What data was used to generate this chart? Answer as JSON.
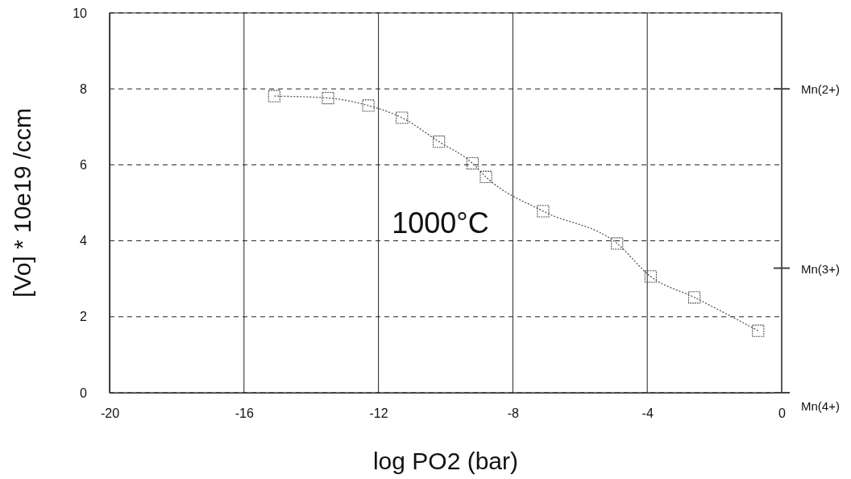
{
  "chart_data": {
    "type": "line",
    "xlabel": "log PO2 (bar)",
    "ylabel": "[Vo] * 10e19 /ccm",
    "xlim": [
      -20,
      0
    ],
    "xticks": [
      -20,
      -16,
      -12,
      -8,
      -4,
      0
    ],
    "ylim": [
      0,
      10
    ],
    "yticks": [
      0,
      2,
      4,
      6,
      8,
      10
    ],
    "grid": true,
    "marker": "square",
    "line_style": "dotted",
    "series": [
      {
        "color": "#555555",
        "x": [
          -15.1,
          -13.5,
          -12.3,
          -11.3,
          -10.2,
          -9.2,
          -8.8,
          -7.1,
          -4.9,
          -3.9,
          -2.6,
          -0.7
        ],
        "values": [
          7.81,
          7.76,
          7.56,
          7.24,
          6.61,
          6.04,
          5.68,
          4.78,
          3.93,
          3.06,
          2.51,
          1.63
        ]
      }
    ],
    "annotations": [
      "1000°C"
    ],
    "ref_lines": [
      {
        "axis": "y",
        "value": 8,
        "label": "Mn(2+)"
      },
      {
        "axis": "y",
        "value": 3.28,
        "label": "Mn(3+)"
      },
      {
        "axis": "y",
        "value": 0,
        "label": "Mn(4+)"
      }
    ]
  }
}
